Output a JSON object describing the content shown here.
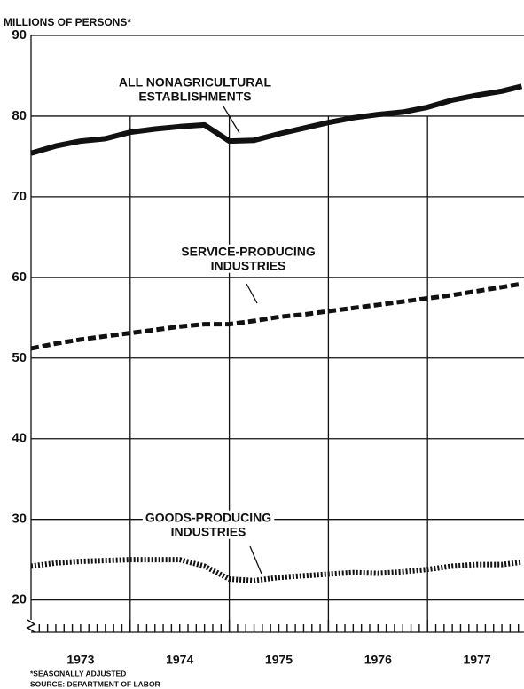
{
  "chart_data": {
    "type": "line",
    "y_axis_label": "MILLIONS OF PERSONS*",
    "footnotes": [
      "*SEASONALLY ADJUSTED",
      "SOURCE: DEPARTMENT OF LABOR"
    ],
    "x": [
      1973,
      1973.25,
      1973.5,
      1973.75,
      1974,
      1974.25,
      1974.5,
      1974.75,
      1975,
      1975.25,
      1975.5,
      1975.75,
      1976,
      1976.25,
      1976.5,
      1976.75,
      1977,
      1977.25,
      1977.5,
      1977.75,
      1977.95
    ],
    "xlim": [
      1973,
      1978
    ],
    "xticks": [
      {
        "value": 1973.5,
        "label": "1973"
      },
      {
        "value": 1974.5,
        "label": "1974"
      },
      {
        "value": 1975.5,
        "label": "1975"
      },
      {
        "value": 1976.5,
        "label": "1976"
      },
      {
        "value": 1977.5,
        "label": "1977"
      }
    ],
    "xgrid": [
      1974,
      1975,
      1976,
      1977
    ],
    "ylim": [
      16,
      90
    ],
    "yticks": [
      20,
      30,
      40,
      50,
      60,
      70,
      80,
      90
    ],
    "grid": true,
    "series": [
      {
        "name": [
          "ALL NONAGRICULTURAL",
          "ESTABLISHMENTS"
        ],
        "color": "#111111",
        "style": "solid",
        "values": [
          75.4,
          76.3,
          76.9,
          77.2,
          78.0,
          78.4,
          78.7,
          78.9,
          76.9,
          77.0,
          77.8,
          78.5,
          79.2,
          79.8,
          80.2,
          80.5,
          81.1,
          82.0,
          82.6,
          83.1,
          83.7
        ]
      },
      {
        "name": [
          "SERVICE-PRODUCING",
          "INDUSTRIES"
        ],
        "color": "#111111",
        "style": "dashed",
        "values": [
          51.2,
          51.8,
          52.3,
          52.7,
          53.1,
          53.5,
          53.9,
          54.2,
          54.2,
          54.6,
          55.1,
          55.4,
          55.8,
          56.2,
          56.6,
          57.0,
          57.4,
          57.8,
          58.3,
          58.8,
          59.2
        ]
      },
      {
        "name": [
          "GOODS-PRODUCING",
          "INDUSTRIES"
        ],
        "color": "#111111",
        "style": "dotted",
        "values": [
          24.2,
          24.6,
          24.8,
          24.9,
          25.0,
          25.0,
          25.0,
          24.2,
          22.6,
          22.4,
          22.8,
          23.0,
          23.2,
          23.4,
          23.3,
          23.5,
          23.8,
          24.2,
          24.4,
          24.4,
          24.7
        ]
      }
    ]
  }
}
